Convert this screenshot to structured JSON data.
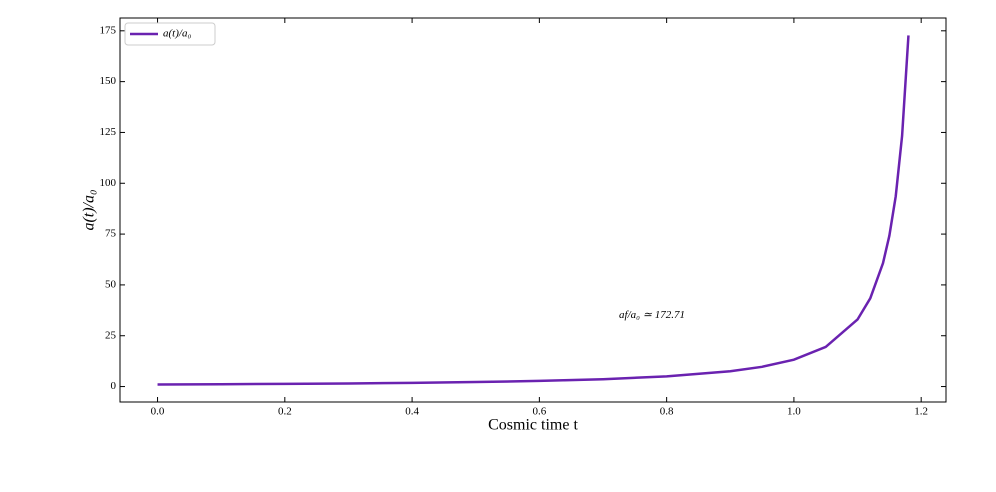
{
  "chart_data": {
    "type": "line",
    "xlabel": "Cosmic time t",
    "ylabel": "a(t)/a₀",
    "annotation": "af/a₀ ≃ 172.71",
    "x": [
      0,
      0.1,
      0.2,
      0.3,
      0.4,
      0.5,
      0.6,
      0.7,
      0.8,
      0.9,
      0.95,
      1.0,
      1.05,
      1.1,
      1.12,
      1.14,
      1.15,
      1.16,
      1.17,
      1.18
    ],
    "series": [
      {
        "name": "a(t)/a₀",
        "color": "#6a22b0",
        "values": [
          1,
          1.138,
          1.31,
          1.53,
          1.82,
          2.214,
          2.773,
          3.615,
          5.0,
          7.51,
          9.71,
          13.2,
          19.5,
          33.0,
          43.4,
          60.7,
          74.2,
          93.6,
          123.3,
          172.71
        ]
      }
    ],
    "xlim": [
      -0.059,
      1.239
    ],
    "ylim": [
      -7.6,
      181.3
    ],
    "xticks": [
      {
        "value": 0,
        "label": "0.0"
      },
      0.2,
      0.4,
      0.6,
      0.8,
      {
        "value": 1,
        "label": "1.0"
      },
      1.2
    ],
    "yticks": [
      0,
      25,
      50,
      75,
      100,
      125,
      150,
      175
    ],
    "legend": "upper left",
    "grid": false
  }
}
